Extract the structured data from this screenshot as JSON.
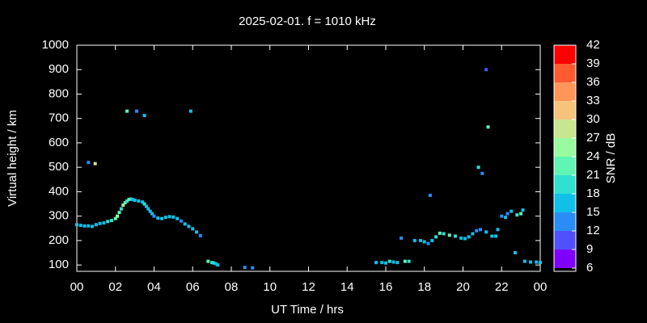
{
  "chart_data": {
    "type": "scatter",
    "title": "2025-02-01. f = 1010 kHz",
    "x_label": "UT Time / hrs",
    "y_label": "Virtual height / km",
    "xlim": [
      0,
      24
    ],
    "xticks": [
      {
        "value": 0,
        "label": "00"
      },
      {
        "value": 2,
        "label": "02"
      },
      {
        "value": 4,
        "label": "04"
      },
      {
        "value": 6,
        "label": "06"
      },
      {
        "value": 8,
        "label": "08"
      },
      10,
      12,
      14,
      16,
      18,
      20,
      22,
      {
        "value": 24,
        "label": "00"
      }
    ],
    "ylim": [
      74,
      1000
    ],
    "yticks": [
      100,
      200,
      300,
      400,
      500,
      600,
      700,
      800,
      900,
      1000
    ],
    "x": [
      0.0,
      0.2,
      0.4,
      0.6,
      0.8,
      1.0,
      1.2,
      1.4,
      1.6,
      1.8,
      2.0,
      2.1,
      2.2,
      2.3,
      2.4,
      2.5,
      2.6,
      2.7,
      2.8,
      2.9,
      3.0,
      3.2,
      3.4,
      3.5,
      3.6,
      3.7,
      3.8,
      3.9,
      4.0,
      4.2,
      4.4,
      4.6,
      4.8,
      5.0,
      5.2,
      5.4,
      5.6,
      5.8,
      6.0,
      6.2,
      6.4,
      6.8,
      7.0,
      7.1,
      7.2,
      7.3,
      8.7,
      9.1,
      0.6,
      0.95,
      2.6,
      3.1,
      3.5,
      5.9,
      15.5,
      15.8,
      16.0,
      16.2,
      16.4,
      16.6,
      16.8,
      17.0,
      17.2,
      17.5,
      17.8,
      18.0,
      18.2,
      18.3,
      18.4,
      18.6,
      18.8,
      19.0,
      19.3,
      19.6,
      19.9,
      20.1,
      20.3,
      20.5,
      20.7,
      20.9,
      20.8,
      21.0,
      21.2,
      21.3,
      21.2,
      21.5,
      21.7,
      21.8,
      22.0,
      22.2,
      22.3,
      22.5,
      22.7,
      22.8,
      23.0,
      23.1,
      23.2,
      23.5,
      23.8,
      24.0
    ],
    "values": [
      265,
      262,
      260,
      260,
      258,
      265,
      270,
      272,
      278,
      282,
      290,
      300,
      315,
      330,
      345,
      355,
      362,
      368,
      370,
      368,
      365,
      362,
      358,
      350,
      340,
      330,
      320,
      310,
      300,
      292,
      290,
      295,
      298,
      296,
      290,
      280,
      268,
      258,
      248,
      235,
      220,
      115,
      110,
      108,
      105,
      100,
      90,
      88,
      520,
      515,
      730,
      730,
      712,
      730,
      110,
      110,
      108,
      115,
      112,
      110,
      210,
      115,
      115,
      200,
      200,
      195,
      188,
      385,
      200,
      215,
      230,
      228,
      222,
      218,
      210,
      208,
      215,
      228,
      240,
      245,
      500,
      475,
      900,
      665,
      235,
      218,
      218,
      245,
      300,
      295,
      310,
      320,
      150,
      305,
      310,
      325,
      115,
      112,
      112,
      110
    ],
    "snr": [
      17,
      16,
      17,
      16,
      17,
      16,
      17,
      16,
      18,
      20,
      22,
      24,
      22,
      20,
      24,
      22,
      20,
      22,
      20,
      17,
      16,
      17,
      16,
      18,
      17,
      16,
      17,
      16,
      13,
      16,
      17,
      16,
      17,
      16,
      17,
      13,
      16,
      17,
      16,
      16,
      13,
      22,
      20,
      18,
      17,
      16,
      13,
      13,
      13,
      28,
      22,
      13,
      16,
      17,
      16,
      17,
      16,
      20,
      17,
      16,
      13,
      22,
      18,
      16,
      17,
      16,
      13,
      13,
      16,
      20,
      22,
      20,
      22,
      20,
      17,
      16,
      17,
      16,
      13,
      13,
      20,
      13,
      11,
      22,
      16,
      17,
      16,
      17,
      13,
      16,
      13,
      17,
      17,
      20,
      22,
      17,
      16,
      17,
      16,
      17
    ],
    "colorbar": {
      "label": "SNR / dB",
      "lim": [
        6,
        42
      ],
      "ticks": [
        6,
        9,
        12,
        15,
        18,
        21,
        24,
        27,
        30,
        33,
        36,
        39,
        42
      ],
      "colors": [
        "#8000ff",
        "#5050ff",
        "#2a8cf5",
        "#10c0e8",
        "#30e0d0",
        "#60f5b5",
        "#98fba0",
        "#c8e690",
        "#f5c37a",
        "#ff9658",
        "#ff5a30",
        "#ff0000"
      ]
    }
  }
}
